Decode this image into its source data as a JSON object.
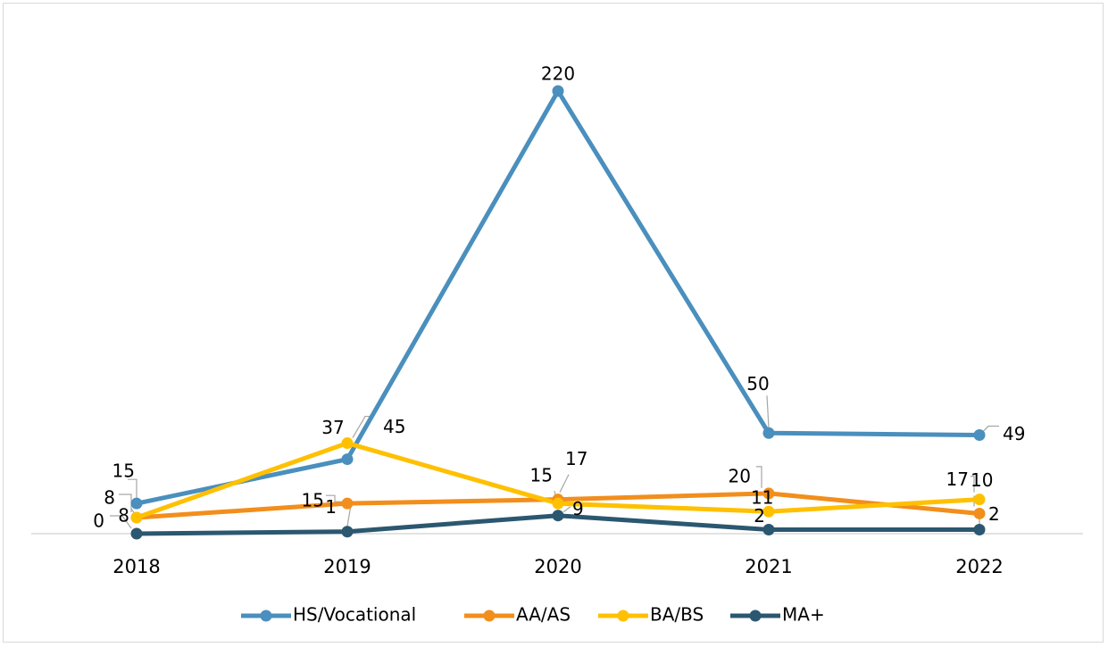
{
  "chart_data": {
    "type": "line",
    "categories": [
      "2018",
      "2019",
      "2020",
      "2021",
      "2022"
    ],
    "ylim": [
      0,
      220
    ],
    "grid": false,
    "legend_position": "bottom",
    "series": [
      {
        "name": "HS/Vocational",
        "color": "#4a8fbd",
        "values": [
          15,
          37,
          220,
          50,
          49
        ]
      },
      {
        "name": "AA/AS",
        "color": "#f28e1c",
        "values": [
          8,
          15,
          17,
          20,
          10
        ]
      },
      {
        "name": "BA/BS",
        "color": "#ffc000",
        "values": [
          8,
          45,
          15,
          11,
          17
        ]
      },
      {
        "name": "MA+",
        "color": "#2b5770",
        "values": [
          0,
          1,
          9,
          2,
          2
        ]
      }
    ],
    "data_labels": [
      {
        "text": "15",
        "series": 0,
        "point": 0
      },
      {
        "text": "37",
        "series": 0,
        "point": 1
      },
      {
        "text": "220",
        "series": 0,
        "point": 2
      },
      {
        "text": "50",
        "series": 0,
        "point": 3
      },
      {
        "text": "49",
        "series": 0,
        "point": 4
      },
      {
        "text": "8",
        "series": 1,
        "point": 0
      },
      {
        "text": "15",
        "series": 1,
        "point": 1
      },
      {
        "text": "17",
        "series": 1,
        "point": 2
      },
      {
        "text": "20",
        "series": 1,
        "point": 3
      },
      {
        "text": "10",
        "series": 1,
        "point": 4
      },
      {
        "text": "8",
        "series": 2,
        "point": 0
      },
      {
        "text": "45",
        "series": 2,
        "point": 1
      },
      {
        "text": "15",
        "series": 2,
        "point": 2
      },
      {
        "text": "11",
        "series": 2,
        "point": 3
      },
      {
        "text": "17",
        "series": 2,
        "point": 4
      },
      {
        "text": "0",
        "series": 3,
        "point": 0
      },
      {
        "text": "1",
        "series": 3,
        "point": 1
      },
      {
        "text": "9",
        "series": 3,
        "point": 2
      },
      {
        "text": "2",
        "series": 3,
        "point": 3
      },
      {
        "text": "2",
        "series": 3,
        "point": 4
      }
    ]
  }
}
